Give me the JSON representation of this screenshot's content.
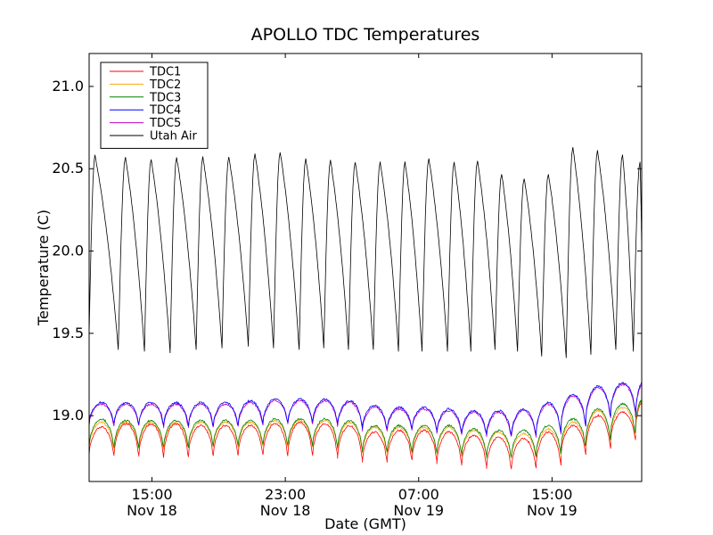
{
  "chart_data": {
    "type": "line",
    "title": "APOLLO TDC Temperatures",
    "xlabel": "Date (GMT)",
    "ylabel": "Temperature (C)",
    "xlim": [
      0,
      33.15
    ],
    "ylim": [
      18.6,
      21.2
    ],
    "x_unit": "hours since Nov 18 11:14 GMT",
    "x_ticks": [
      {
        "pos": 3.77,
        "time": "15:00",
        "date": "Nov 18"
      },
      {
        "pos": 11.77,
        "time": "23:00",
        "date": "Nov 18"
      },
      {
        "pos": 19.77,
        "time": "07:00",
        "date": "Nov 19"
      },
      {
        "pos": 27.77,
        "time": "15:00",
        "date": "Nov 19"
      },
      {
        "pos": 35.77,
        "time": "23:00",
        "date": "Nov 19"
      }
    ],
    "y_ticks": [
      19.0,
      19.5,
      20.0,
      20.5,
      21.0
    ],
    "y_tick_labels": [
      "19.0",
      "19.5",
      "20.0",
      "20.5",
      "21.0"
    ],
    "legend_location": "top-left",
    "series": [
      {
        "name": "TDC1",
        "color": "#ff0000",
        "cycle_starts": [
          0.0,
          1.49,
          2.98,
          4.47,
          5.96,
          7.45,
          8.94,
          10.43,
          11.92,
          13.41,
          14.9,
          16.39,
          17.88,
          19.37,
          20.86,
          22.35,
          23.84,
          25.33,
          26.82,
          28.31,
          29.8,
          31.29,
          32.78
        ],
        "cycle_highs": [
          18.93,
          18.95,
          18.95,
          18.95,
          18.94,
          18.94,
          18.94,
          18.95,
          18.96,
          18.95,
          18.94,
          18.9,
          18.91,
          18.91,
          18.9,
          18.88,
          18.87,
          18.86,
          18.9,
          18.94,
          19.0,
          19.02,
          19.08
        ],
        "cycle_lows": [
          18.76,
          18.76,
          18.75,
          18.75,
          18.76,
          18.76,
          18.76,
          18.76,
          18.76,
          18.76,
          18.74,
          18.72,
          18.73,
          18.73,
          18.71,
          18.7,
          18.68,
          18.68,
          18.7,
          18.76,
          18.8,
          18.85,
          18.9
        ]
      },
      {
        "name": "TDC2",
        "color": "#ffa500",
        "cycle_starts": [
          0.0,
          1.49,
          2.98,
          4.47,
          5.96,
          7.45,
          8.94,
          10.43,
          11.92,
          13.41,
          14.9,
          16.39,
          17.88,
          19.37,
          20.86,
          22.35,
          23.84,
          25.33,
          26.82,
          28.31,
          29.8,
          31.29,
          32.78
        ],
        "cycle_highs": [
          18.96,
          18.96,
          18.96,
          18.96,
          18.96,
          18.96,
          18.96,
          18.97,
          18.97,
          18.97,
          18.96,
          18.93,
          18.93,
          18.93,
          18.93,
          18.91,
          18.9,
          18.89,
          18.92,
          18.96,
          19.03,
          19.05,
          19.09
        ],
        "cycle_lows": [
          18.8,
          18.8,
          18.8,
          18.8,
          18.81,
          18.81,
          18.81,
          18.81,
          18.81,
          18.81,
          18.79,
          18.77,
          18.77,
          18.77,
          18.76,
          18.75,
          18.74,
          18.74,
          18.76,
          18.8,
          18.84,
          18.88,
          18.92
        ]
      },
      {
        "name": "TDC3",
        "color": "#008000",
        "cycle_starts": [
          0.0,
          1.49,
          2.98,
          4.47,
          5.96,
          7.45,
          8.94,
          10.43,
          11.92,
          13.41,
          14.9,
          16.39,
          17.88,
          19.37,
          20.86,
          22.35,
          23.84,
          25.33,
          26.82,
          28.31,
          29.8,
          31.29,
          32.78
        ],
        "cycle_highs": [
          18.98,
          18.97,
          18.97,
          18.97,
          18.97,
          18.97,
          18.97,
          18.98,
          18.98,
          18.98,
          18.97,
          18.94,
          18.94,
          18.94,
          18.94,
          18.92,
          18.91,
          18.91,
          18.94,
          18.98,
          19.04,
          19.07,
          19.1
        ],
        "cycle_lows": [
          18.81,
          18.81,
          18.81,
          18.81,
          18.82,
          18.82,
          18.82,
          18.82,
          18.82,
          18.82,
          18.8,
          18.78,
          18.78,
          18.78,
          18.77,
          18.76,
          18.75,
          18.75,
          18.77,
          18.81,
          18.85,
          18.89,
          18.93
        ]
      },
      {
        "name": "TDC4",
        "color": "#0000ff",
        "cycle_starts": [
          0.0,
          1.49,
          2.98,
          4.47,
          5.96,
          7.45,
          8.94,
          10.43,
          11.92,
          13.41,
          14.9,
          16.39,
          17.88,
          19.37,
          20.86,
          22.35,
          23.84,
          25.33,
          26.82,
          28.31,
          29.8,
          31.29,
          32.78
        ],
        "cycle_highs": [
          19.08,
          19.08,
          19.08,
          19.08,
          19.08,
          19.08,
          19.09,
          19.1,
          19.1,
          19.1,
          19.09,
          19.06,
          19.05,
          19.05,
          19.04,
          19.03,
          19.03,
          19.04,
          19.08,
          19.13,
          19.18,
          19.2,
          19.2
        ],
        "cycle_lows": [
          18.95,
          18.95,
          18.95,
          18.94,
          18.94,
          18.94,
          18.95,
          18.96,
          18.96,
          18.96,
          18.94,
          18.92,
          18.92,
          18.92,
          18.9,
          18.89,
          18.88,
          18.88,
          18.9,
          18.94,
          18.99,
          19.03,
          19.0
        ]
      },
      {
        "name": "TDC5",
        "color": "#bf00bf",
        "cycle_starts": [
          0.0,
          1.49,
          2.98,
          4.47,
          5.96,
          7.45,
          8.94,
          10.43,
          11.92,
          13.41,
          14.9,
          16.39,
          17.88,
          19.37,
          20.86,
          22.35,
          23.84,
          25.33,
          26.82,
          28.31,
          29.8,
          31.29,
          32.78
        ],
        "cycle_highs": [
          19.07,
          19.07,
          19.07,
          19.07,
          19.07,
          19.07,
          19.08,
          19.09,
          19.09,
          19.09,
          19.08,
          19.05,
          19.04,
          19.04,
          19.03,
          19.02,
          19.02,
          19.03,
          19.07,
          19.12,
          19.17,
          19.19,
          19.19
        ],
        "cycle_lows": [
          18.94,
          18.94,
          18.94,
          18.93,
          18.93,
          18.93,
          18.94,
          18.95,
          18.95,
          18.95,
          18.93,
          18.91,
          18.91,
          18.91,
          18.89,
          18.88,
          18.87,
          18.87,
          18.89,
          18.93,
          18.98,
          19.02,
          18.99
        ]
      },
      {
        "name": "Utah Air",
        "color": "#000000",
        "start_value": 19.5,
        "end_value": 20.0,
        "peak_times": [
          0.35,
          2.18,
          3.72,
          5.25,
          6.82,
          8.38,
          9.95,
          11.46,
          13.0,
          14.48,
          15.96,
          17.46,
          18.95,
          20.38,
          21.9,
          23.3,
          24.75,
          26.1,
          27.55,
          29.02,
          30.5,
          32.0,
          33.05
        ],
        "peak_values": [
          20.58,
          20.57,
          20.56,
          20.57,
          20.57,
          20.57,
          20.59,
          20.6,
          20.56,
          20.55,
          20.54,
          20.54,
          20.54,
          20.56,
          20.54,
          20.55,
          20.47,
          20.44,
          20.47,
          20.63,
          20.61,
          20.59,
          20.54
        ],
        "trough_times": [
          1.75,
          3.32,
          4.86,
          6.42,
          7.97,
          9.55,
          11.06,
          12.6,
          14.08,
          15.56,
          17.05,
          18.56,
          19.97,
          21.5,
          22.9,
          24.35,
          25.7,
          27.15,
          28.62,
          30.1,
          31.6,
          32.65
        ],
        "trough_values": [
          19.4,
          19.39,
          19.38,
          19.4,
          19.41,
          19.42,
          19.41,
          19.4,
          19.41,
          19.4,
          19.4,
          19.39,
          19.39,
          19.39,
          19.39,
          19.4,
          19.39,
          19.36,
          19.35,
          19.37,
          19.4,
          19.39
        ]
      }
    ]
  }
}
